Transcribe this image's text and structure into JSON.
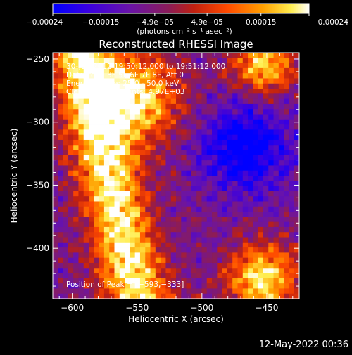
{
  "chart_data": {
    "type": "heatmap",
    "title": "Reconstructed RHESSI Image",
    "xlabel": "Heliocentric X (arcsec)",
    "ylabel": "Heliocentric Y (arcsec)",
    "xlim": [
      -615,
      -425
    ],
    "ylim": [
      -440,
      -245
    ],
    "x_ticks": [
      {
        "value": -600,
        "label": "−600"
      },
      {
        "value": -550,
        "label": "−550"
      },
      {
        "value": -500,
        "label": "−500"
      },
      {
        "value": -450,
        "label": "−450"
      }
    ],
    "y_ticks": [
      {
        "value": -250,
        "label": "−250"
      },
      {
        "value": -300,
        "label": "−300"
      },
      {
        "value": -350,
        "label": "−350"
      },
      {
        "value": -400,
        "label": "−400"
      }
    ],
    "colorbar": {
      "range": [
        -0.00024,
        0.00024
      ],
      "colors": [
        "#0000ff",
        "#5a10c8",
        "#7a1a6a",
        "#b0201a",
        "#ff3a00",
        "#ff9a00",
        "#ffe84a",
        "#ffffff"
      ],
      "tick_labels": [
        {
          "value": -0.00024,
          "label": "−0.00024"
        },
        {
          "value": -0.00015,
          "label": "−0.00015"
        },
        {
          "value": -4.9e-05,
          "label": "−4.9e−05"
        },
        {
          "value": 4.9e-05,
          "label": "4.9e−05"
        },
        {
          "value": 0.00015,
          "label": "0.00015"
        },
        {
          "value": 0.00024,
          "label": "0.00024"
        }
      ],
      "unit_text": "(photons cm⁻² s⁻¹ asec⁻²)"
    },
    "annotations": {
      "time_range": "30-Jun-2012 19:50:12.000 to 19:51:12.000",
      "detectors": "Detectors: 3F 5F 6F 7F 8F, Att 0",
      "energy_range": "Energy Range: 25.0 - 50.0 keV",
      "method": "Clean     Total counts: 4.97E+03",
      "peak": "Position of Peak = [−593,−333]"
    },
    "peak_position": [
      -593,
      -333
    ],
    "total_counts": 4970,
    "energy_range_kev": [
      25.0,
      50.0
    ],
    "footer_date": "12-May-2022 00:36"
  }
}
